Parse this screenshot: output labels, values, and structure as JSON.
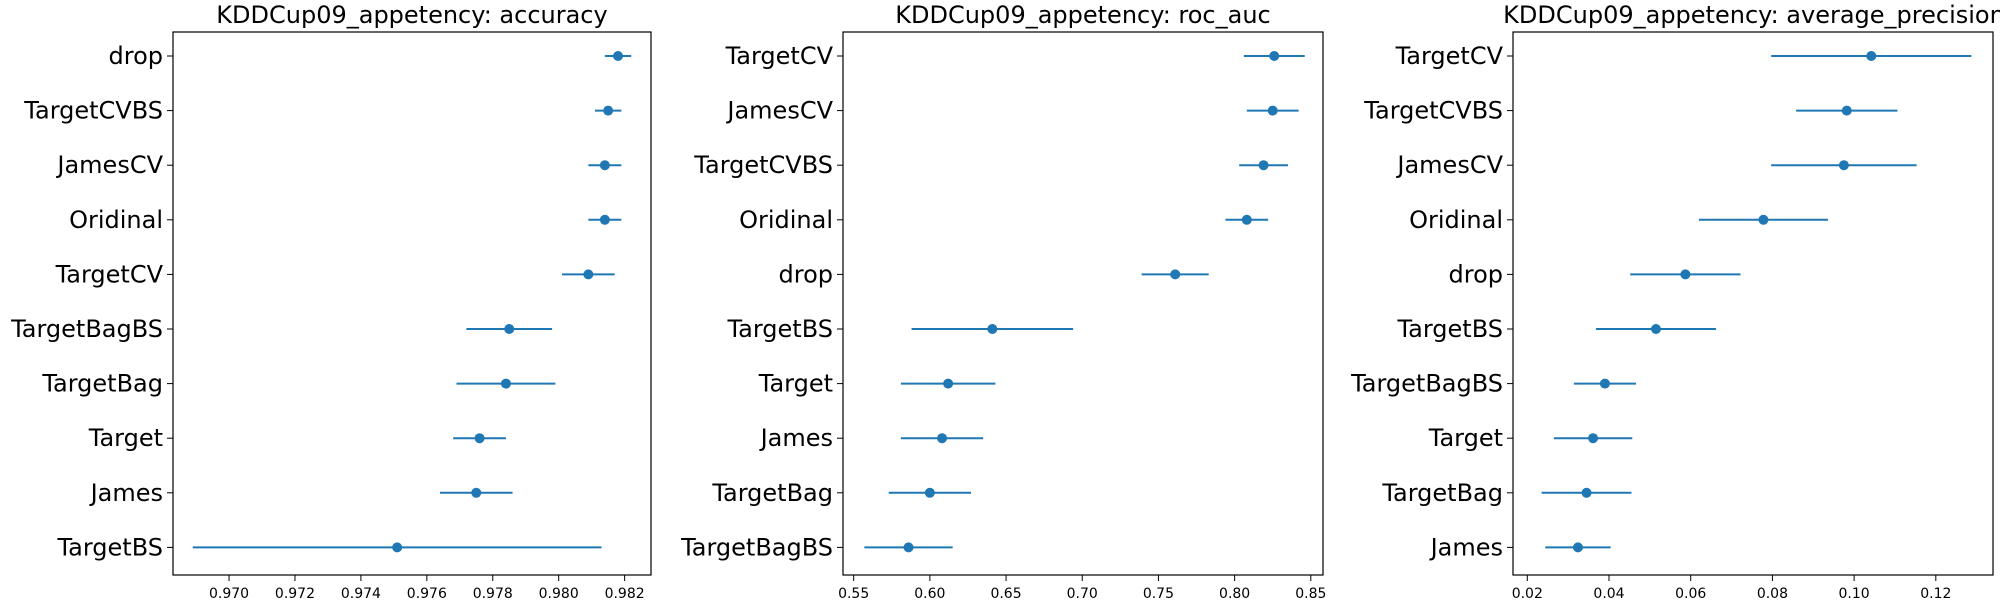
{
  "chart_data": [
    {
      "type": "errorbar",
      "title": "KDDCup09_appetency: accuracy",
      "xlabel": "",
      "ylabel": "",
      "xlim": [
        0.9683,
        0.9828
      ],
      "xticks": [
        0.97,
        0.972,
        0.974,
        0.976,
        0.978,
        0.98,
        0.982
      ],
      "xtick_labels": [
        "0.970",
        "0.972",
        "0.974",
        "0.976",
        "0.978",
        "0.980",
        "0.982"
      ],
      "color": "#1f77b4",
      "grid": false,
      "categories": [
        "drop",
        "TargetCVBS",
        "JamesCV",
        "Oridinal",
        "TargetCV",
        "TargetBagBS",
        "TargetBag",
        "Target",
        "James",
        "TargetBS"
      ],
      "values": [
        0.9818,
        0.9815,
        0.9814,
        0.9814,
        0.9809,
        0.9785,
        0.9784,
        0.9776,
        0.9775,
        0.9751
      ],
      "errors": [
        0.0004,
        0.0004,
        0.0005,
        0.0005,
        0.0008,
        0.0013,
        0.0015,
        0.0008,
        0.0011,
        0.0062
      ]
    },
    {
      "type": "errorbar",
      "title": "KDDCup09_appetency: roc_auc",
      "xlabel": "",
      "ylabel": "",
      "xlim": [
        0.543,
        0.858
      ],
      "xticks": [
        0.55,
        0.6,
        0.65,
        0.7,
        0.75,
        0.8,
        0.85
      ],
      "xtick_labels": [
        "0.55",
        "0.60",
        "0.65",
        "0.70",
        "0.75",
        "0.80",
        "0.85"
      ],
      "color": "#1f77b4",
      "grid": false,
      "categories": [
        "TargetCV",
        "JamesCV",
        "TargetCVBS",
        "Oridinal",
        "drop",
        "TargetBS",
        "Target",
        "James",
        "TargetBag",
        "TargetBagBS"
      ],
      "values": [
        0.826,
        0.825,
        0.819,
        0.808,
        0.761,
        0.641,
        0.612,
        0.608,
        0.6,
        0.586
      ],
      "errors": [
        0.02,
        0.017,
        0.016,
        0.014,
        0.022,
        0.053,
        0.031,
        0.027,
        0.027,
        0.029
      ]
    },
    {
      "type": "errorbar",
      "title": "KDDCup09_appetency: average_precision",
      "xlabel": "",
      "ylabel": "",
      "xlim": [
        0.0165,
        0.134
      ],
      "xticks": [
        0.02,
        0.04,
        0.06,
        0.08,
        0.1,
        0.12
      ],
      "xtick_labels": [
        "0.02",
        "0.04",
        "0.06",
        "0.08",
        "0.10",
        "0.12"
      ],
      "color": "#1f77b4",
      "grid": false,
      "categories": [
        "TargetCV",
        "TargetCVBS",
        "JamesCV",
        "Oridinal",
        "drop",
        "TargetBS",
        "TargetBagBS",
        "Target",
        "TargetBag",
        "James"
      ],
      "values": [
        0.1042,
        0.0982,
        0.0975,
        0.0778,
        0.0587,
        0.0515,
        0.039,
        0.0361,
        0.0345,
        0.0324
      ],
      "errors": [
        0.0245,
        0.0124,
        0.0178,
        0.0158,
        0.0135,
        0.0147,
        0.0076,
        0.0096,
        0.011,
        0.008
      ]
    }
  ]
}
